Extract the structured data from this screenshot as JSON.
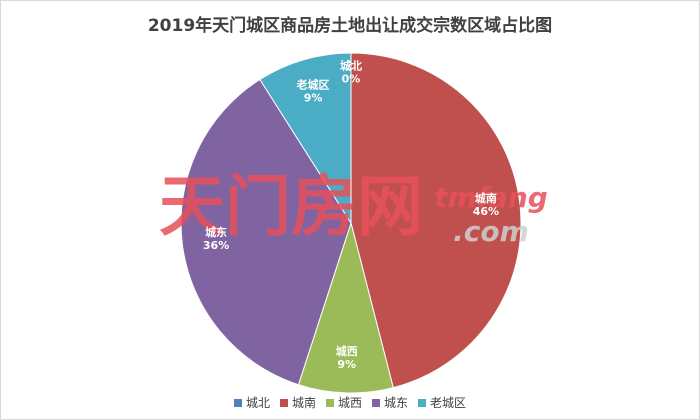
{
  "title": "2019年天门城区商品房土地出让成交宗数区域占比图",
  "watermark": {
    "cn": "天门房网",
    "en": "tmfang",
    "dot": ".com"
  },
  "chart_data": {
    "type": "pie",
    "title": "2019年天门城区商品房土地出让成交宗数区域占比图",
    "start_angle_deg": 0,
    "direction": "clockwise",
    "legend_position": "bottom",
    "slices": [
      {
        "name": "城北",
        "value": 0,
        "label": "0%",
        "color": "#4f81bd"
      },
      {
        "name": "城南",
        "value": 46,
        "label": "46%",
        "color": "#c0504d"
      },
      {
        "name": "城西",
        "value": 9,
        "label": "9%",
        "color": "#9bbb59"
      },
      {
        "name": "城东",
        "value": 36,
        "label": "36%",
        "color": "#8064a2"
      },
      {
        "name": "老城区",
        "value": 9,
        "label": "9%",
        "color": "#4bacc6"
      }
    ]
  }
}
